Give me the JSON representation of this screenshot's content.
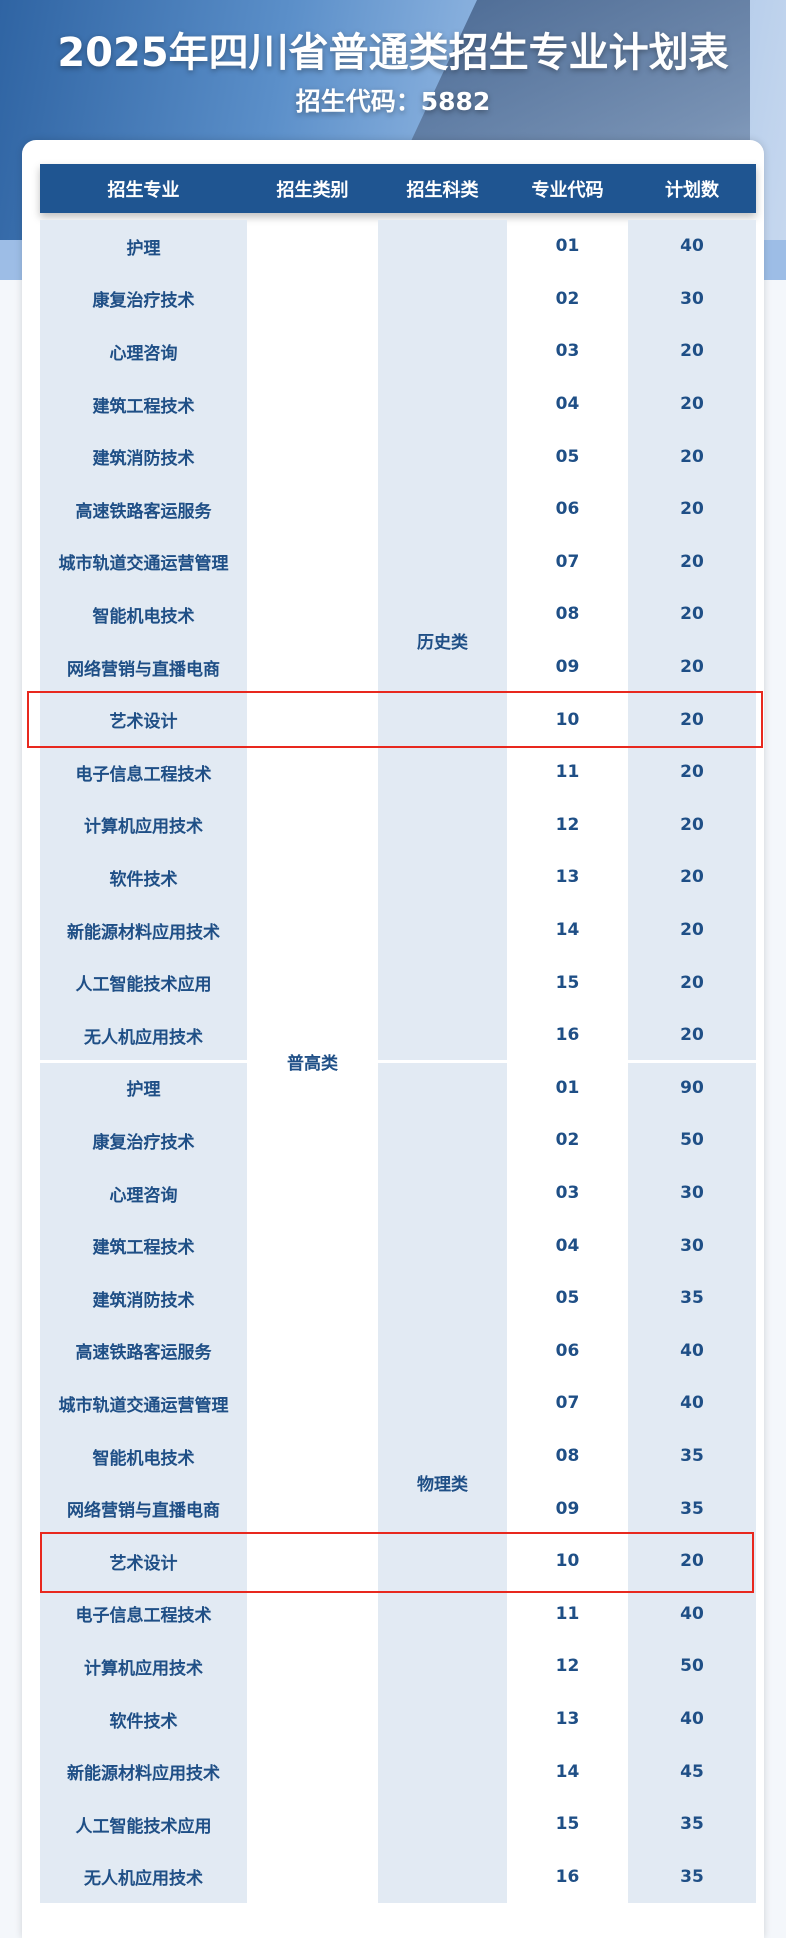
{
  "title": "2025年四川省普通类招生专业计划表",
  "code_line": "招生代码：5882",
  "headers": [
    "招生专业",
    "招生类别",
    "招生科类",
    "专业代码",
    "计划数"
  ],
  "category": "普高类",
  "groups": [
    {
      "subject": "历史类",
      "rows": [
        [
          "护理",
          "01",
          "40"
        ],
        [
          "康复治疗技术",
          "02",
          "30"
        ],
        [
          "心理咨询",
          "03",
          "20"
        ],
        [
          "建筑工程技术",
          "04",
          "20"
        ],
        [
          "建筑消防技术",
          "05",
          "20"
        ],
        [
          "高速铁路客运服务",
          "06",
          "20"
        ],
        [
          "城市轨道交通运营管理",
          "07",
          "20"
        ],
        [
          "智能机电技术",
          "08",
          "20"
        ],
        [
          "网络营销与直播电商",
          "09",
          "20"
        ],
        [
          "艺术设计",
          "10",
          "20"
        ],
        [
          "电子信息工程技术",
          "11",
          "20"
        ],
        [
          "计算机应用技术",
          "12",
          "20"
        ],
        [
          "软件技术",
          "13",
          "20"
        ],
        [
          "新能源材料应用技术",
          "14",
          "20"
        ],
        [
          "人工智能技术应用",
          "15",
          "20"
        ],
        [
          "无人机应用技术",
          "16",
          "20"
        ]
      ]
    },
    {
      "subject": "物理类",
      "rows": [
        [
          "护理",
          "01",
          "90"
        ],
        [
          "康复治疗技术",
          "02",
          "50"
        ],
        [
          "心理咨询",
          "03",
          "30"
        ],
        [
          "建筑工程技术",
          "04",
          "30"
        ],
        [
          "建筑消防技术",
          "05",
          "35"
        ],
        [
          "高速铁路客运服务",
          "06",
          "40"
        ],
        [
          "城市轨道交通运营管理",
          "07",
          "40"
        ],
        [
          "智能机电技术",
          "08",
          "35"
        ],
        [
          "网络营销与直播电商",
          "09",
          "35"
        ],
        [
          "艺术设计",
          "10",
          "20"
        ],
        [
          "电子信息工程技术",
          "11",
          "40"
        ],
        [
          "计算机应用技术",
          "12",
          "50"
        ],
        [
          "软件技术",
          "13",
          "40"
        ],
        [
          "新能源材料应用技术",
          "14",
          "45"
        ],
        [
          "人工智能技术应用",
          "15",
          "35"
        ],
        [
          "无人机应用技术",
          "16",
          "35"
        ]
      ]
    }
  ],
  "colors": {
    "header": "#1f5591",
    "text": "#1f4f86",
    "shade": "#e2eaf3",
    "highlight": "#e8281e"
  }
}
